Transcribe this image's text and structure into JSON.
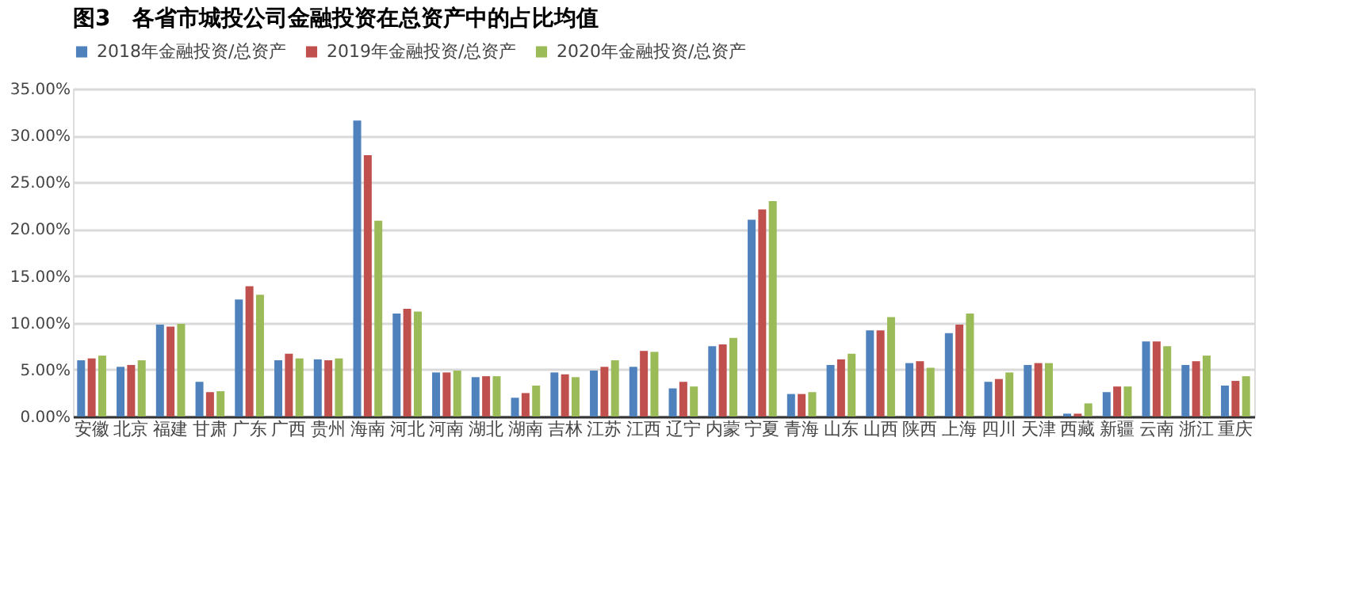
{
  "chart_data": {
    "type": "bar",
    "title": "图3　各省市城投公司金融投资在总资产中的占比均值",
    "categories": [
      "安徽",
      "北京",
      "福建",
      "甘肃",
      "广东",
      "广西",
      "贵州",
      "海南",
      "河北",
      "河南",
      "湖北",
      "湖南",
      "吉林",
      "江苏",
      "江西",
      "辽宁",
      "内蒙",
      "宁夏",
      "青海",
      "山东",
      "山西",
      "陕西",
      "上海",
      "四川",
      "天津",
      "西藏",
      "新疆",
      "云南",
      "浙江",
      "重庆"
    ],
    "series": [
      {
        "name": "2018年金融投资/总资产",
        "color": "#4f81bd",
        "values": [
          6.0,
          5.3,
          9.8,
          3.7,
          12.5,
          6.0,
          6.1,
          31.6,
          11.0,
          4.7,
          4.2,
          2.0,
          4.7,
          4.9,
          5.3,
          3.0,
          7.5,
          21.0,
          2.4,
          5.5,
          9.2,
          5.7,
          8.9,
          3.7,
          5.5,
          0.3,
          2.6,
          8.0,
          5.5,
          3.3
        ]
      },
      {
        "name": "2019年金融投资/总资产",
        "color": "#c0504d",
        "values": [
          6.2,
          5.5,
          9.6,
          2.6,
          13.9,
          6.7,
          6.0,
          27.9,
          11.5,
          4.7,
          4.3,
          2.5,
          4.5,
          5.3,
          7.0,
          3.7,
          7.7,
          22.1,
          2.4,
          6.1,
          9.2,
          5.9,
          9.8,
          4.0,
          5.7,
          0.3,
          3.2,
          8.0,
          5.9,
          3.8
        ]
      },
      {
        "name": "2020年金融投资/总资产",
        "color": "#9bbb59",
        "values": [
          6.5,
          6.0,
          9.9,
          2.7,
          13.0,
          6.2,
          6.2,
          20.9,
          11.2,
          4.9,
          4.3,
          3.3,
          4.2,
          6.0,
          6.9,
          3.2,
          8.4,
          23.0,
          2.6,
          6.7,
          10.6,
          5.2,
          11.0,
          4.7,
          5.7,
          1.4,
          3.2,
          7.5,
          6.5,
          4.3
        ]
      }
    ],
    "ylim": [
      0,
      35
    ],
    "yticks": [
      {
        "value": 0,
        "label": "0.00%"
      },
      {
        "value": 5,
        "label": "5.00%"
      },
      {
        "value": 10,
        "label": "10.00%"
      },
      {
        "value": 15,
        "label": "15.00%"
      },
      {
        "value": 20,
        "label": "20.00%"
      },
      {
        "value": 25,
        "label": "25.00%"
      },
      {
        "value": 30,
        "label": "30.00%"
      },
      {
        "value": 35,
        "label": "35.00%"
      }
    ],
    "grid": "y",
    "legend": "top"
  }
}
